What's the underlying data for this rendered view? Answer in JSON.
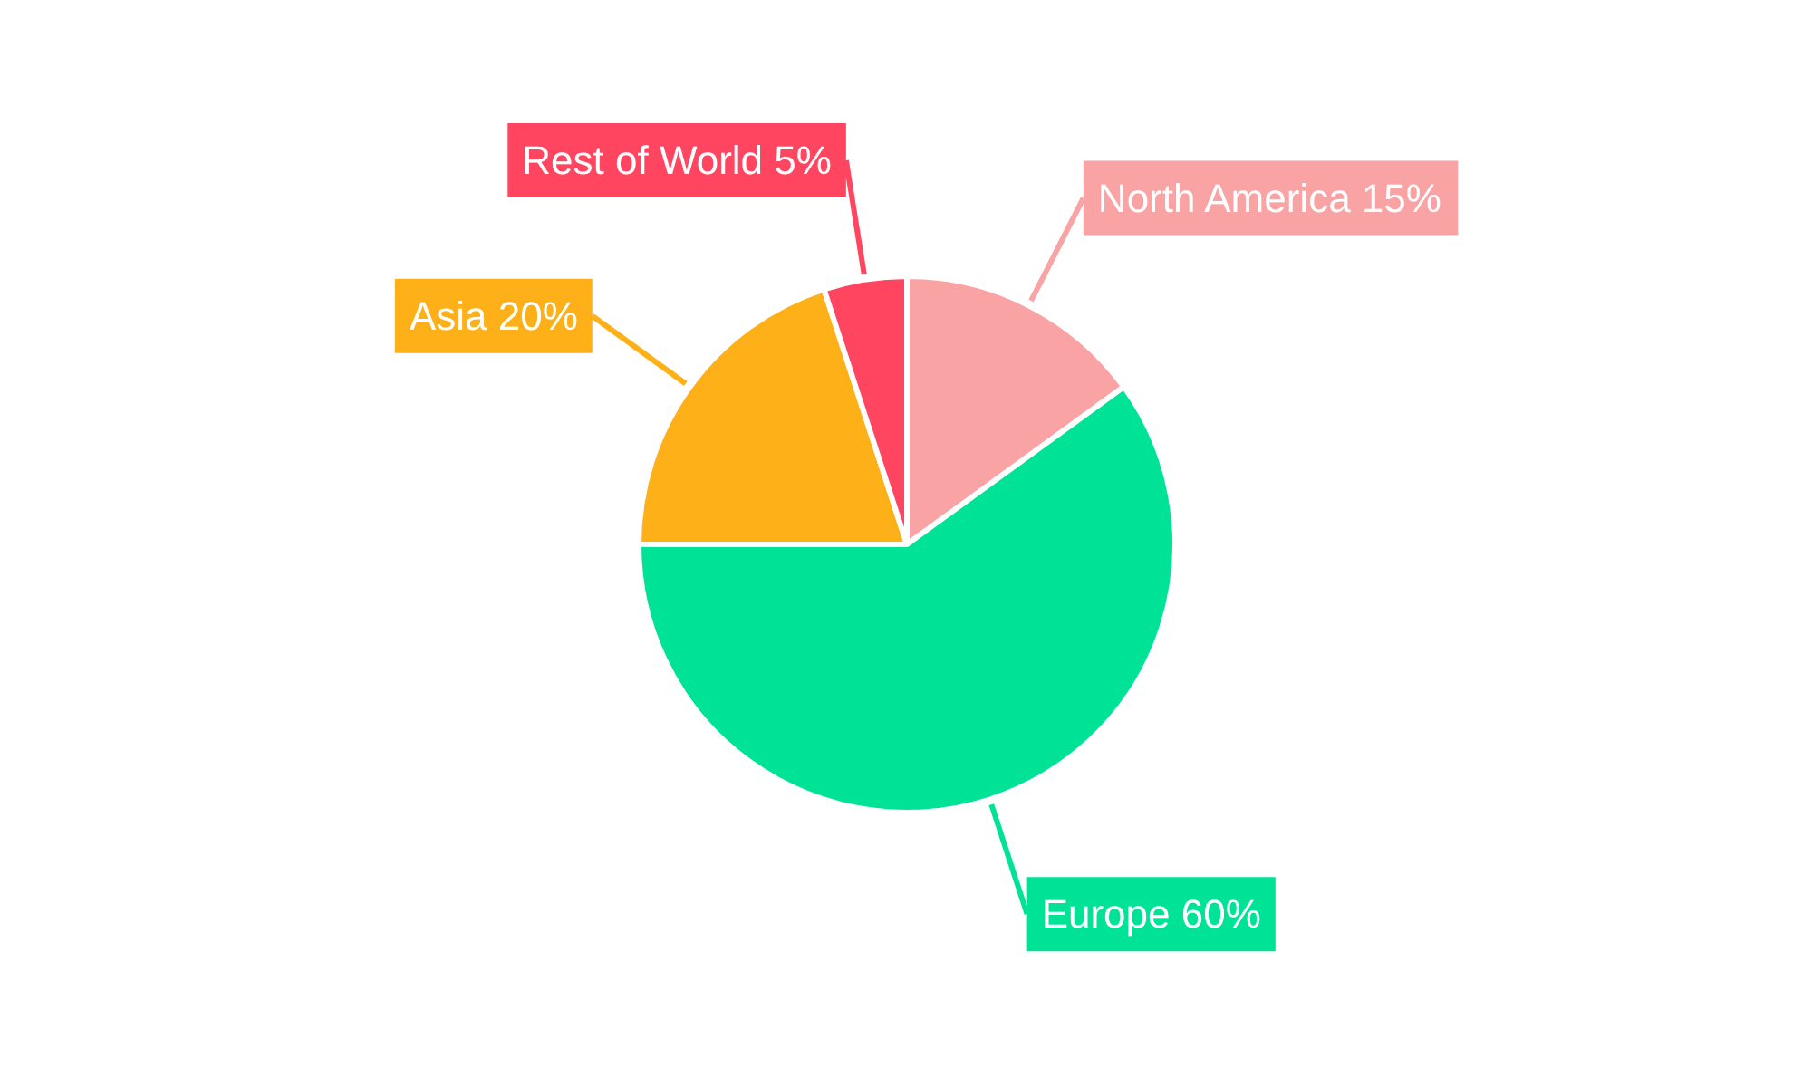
{
  "chart_data": {
    "type": "pie",
    "categories": [
      "North America",
      "Europe",
      "Asia",
      "Rest of World"
    ],
    "values": [
      15,
      60,
      20,
      5
    ],
    "colors": [
      "#f9a3a4",
      "#00e396",
      "#feb019",
      "#ff4560"
    ],
    "value_labels": [
      "15%",
      "60%",
      "20%",
      "5%"
    ]
  }
}
